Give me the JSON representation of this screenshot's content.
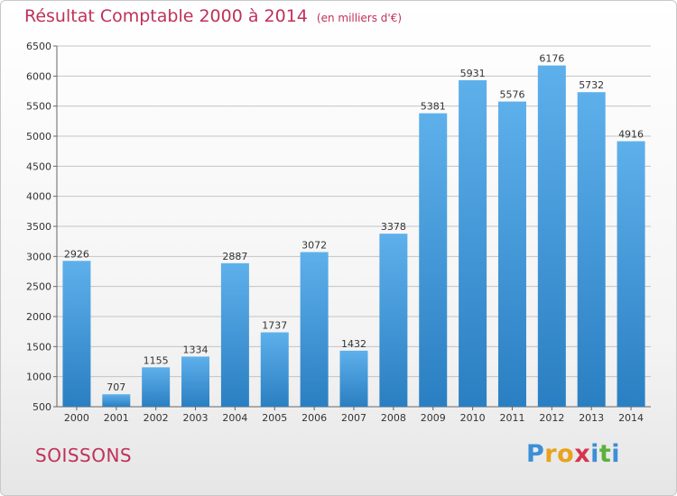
{
  "header": {
    "title": "Résultat Comptable 2000 à 2014",
    "subtitle": "(en milliers d'€)"
  },
  "footer": {
    "city": "SOISSONS",
    "logo_letters": [
      "P",
      "r",
      "o",
      "x",
      "i",
      "t",
      "i"
    ],
    "logo_colors": [
      "#3b8fd6",
      "#e8a21c",
      "#e8a21c",
      "#d6344f",
      "#3b8fd6",
      "#5bb13b",
      "#3b8fd6"
    ]
  },
  "colors": {
    "title": "#c0305a",
    "bar_light": "#5eb0eb",
    "bar_dark": "#2a7fc2"
  },
  "chart_data": {
    "type": "bar",
    "categories": [
      "2000",
      "2001",
      "2002",
      "2003",
      "2004",
      "2005",
      "2006",
      "2007",
      "2008",
      "2009",
      "2010",
      "2011",
      "2012",
      "2013",
      "2014"
    ],
    "values": [
      2926,
      707,
      1155,
      1334,
      2887,
      1737,
      3072,
      1432,
      3378,
      5381,
      5931,
      5576,
      6176,
      5732,
      4916
    ],
    "ylim": [
      500,
      6500
    ],
    "yticks": [
      500,
      1000,
      1500,
      2000,
      2500,
      3000,
      3500,
      4000,
      4500,
      5000,
      5500,
      6000,
      6500
    ],
    "grid": true,
    "data_labels": true
  }
}
